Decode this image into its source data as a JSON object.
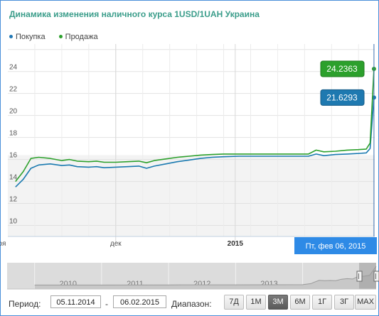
{
  "title": "Динамика изменения наличного курса 1USD/1UAH Украина",
  "legend": [
    {
      "label": "Покупка",
      "color": "#1f77b4"
    },
    {
      "label": "Продажа",
      "color": "#2ca02c"
    }
  ],
  "chart_data": {
    "type": "line",
    "ylim": [
      9,
      26.5
    ],
    "yticks": [
      10,
      12,
      14,
      16,
      18,
      20,
      22,
      24
    ],
    "x_range": [
      "2014-11-05",
      "2015-02-06"
    ],
    "xtick_labels": [
      {
        "date": "2014-11-01",
        "label": "ноя"
      },
      {
        "date": "2014-12-01",
        "label": "дек"
      },
      {
        "date": "2015-01-01",
        "label": "2015"
      }
    ],
    "grid": true,
    "legend_position": "top-left",
    "series": [
      {
        "name": "Покупка",
        "color": "#1a7ab0",
        "points": [
          [
            "2014-11-05",
            13.5
          ],
          [
            "2014-11-07",
            14.2
          ],
          [
            "2014-11-09",
            15.2
          ],
          [
            "2014-11-11",
            15.5
          ],
          [
            "2014-11-14",
            15.6
          ],
          [
            "2014-11-17",
            15.45
          ],
          [
            "2014-11-19",
            15.5
          ],
          [
            "2014-11-21",
            15.35
          ],
          [
            "2014-11-24",
            15.3
          ],
          [
            "2014-11-26",
            15.35
          ],
          [
            "2014-11-28",
            15.25
          ],
          [
            "2014-12-01",
            15.3
          ],
          [
            "2014-12-04",
            15.35
          ],
          [
            "2014-12-07",
            15.4
          ],
          [
            "2014-12-09",
            15.2
          ],
          [
            "2014-12-11",
            15.4
          ],
          [
            "2014-12-14",
            15.6
          ],
          [
            "2014-12-17",
            15.8
          ],
          [
            "2014-12-20",
            15.95
          ],
          [
            "2014-12-23",
            16.1
          ],
          [
            "2014-12-26",
            16.2
          ],
          [
            "2014-12-29",
            16.25
          ],
          [
            "2015-01-02",
            16.3
          ],
          [
            "2015-01-08",
            16.3
          ],
          [
            "2015-01-14",
            16.3
          ],
          [
            "2015-01-20",
            16.3
          ],
          [
            "2015-01-22",
            16.5
          ],
          [
            "2015-01-24",
            16.35
          ],
          [
            "2015-01-27",
            16.45
          ],
          [
            "2015-01-30",
            16.5
          ],
          [
            "2015-02-02",
            16.55
          ],
          [
            "2015-02-04",
            16.6
          ],
          [
            "2015-02-05",
            17.0
          ],
          [
            "2015-02-06",
            21.6293
          ]
        ]
      },
      {
        "name": "Продажа",
        "color": "#2ca02c",
        "points": [
          [
            "2014-11-05",
            14.0
          ],
          [
            "2014-11-07",
            14.9
          ],
          [
            "2014-11-09",
            16.1
          ],
          [
            "2014-11-11",
            16.2
          ],
          [
            "2014-11-14",
            16.1
          ],
          [
            "2014-11-17",
            15.9
          ],
          [
            "2014-11-19",
            16.0
          ],
          [
            "2014-11-21",
            15.85
          ],
          [
            "2014-11-24",
            15.8
          ],
          [
            "2014-11-26",
            15.85
          ],
          [
            "2014-11-28",
            15.75
          ],
          [
            "2014-12-01",
            15.75
          ],
          [
            "2014-12-04",
            15.8
          ],
          [
            "2014-12-07",
            15.85
          ],
          [
            "2014-12-09",
            15.7
          ],
          [
            "2014-12-11",
            15.9
          ],
          [
            "2014-12-14",
            16.05
          ],
          [
            "2014-12-17",
            16.2
          ],
          [
            "2014-12-20",
            16.3
          ],
          [
            "2014-12-23",
            16.4
          ],
          [
            "2014-12-26",
            16.45
          ],
          [
            "2014-12-29",
            16.5
          ],
          [
            "2015-01-02",
            16.5
          ],
          [
            "2015-01-08",
            16.5
          ],
          [
            "2015-01-14",
            16.5
          ],
          [
            "2015-01-20",
            16.5
          ],
          [
            "2015-01-22",
            16.85
          ],
          [
            "2015-01-24",
            16.7
          ],
          [
            "2015-01-27",
            16.75
          ],
          [
            "2015-01-30",
            16.85
          ],
          [
            "2015-02-02",
            16.9
          ],
          [
            "2015-02-04",
            16.95
          ],
          [
            "2015-02-05",
            17.5
          ],
          [
            "2015-02-06",
            24.2363
          ]
        ]
      }
    ],
    "end_labels": {
      "sale": "24.2363",
      "buy": "21.6293"
    },
    "tooltip": "Пт, фев 06, 2015",
    "navigator": {
      "years": [
        "2010",
        "2011",
        "2012",
        "2013",
        "2014"
      ],
      "history": [
        [
          "2010-01-01",
          8.0
        ],
        [
          "2011-01-01",
          8.0
        ],
        [
          "2012-01-01",
          8.1
        ],
        [
          "2013-01-01",
          8.15
        ],
        [
          "2014-01-01",
          8.3
        ],
        [
          "2014-02-15",
          9.2
        ],
        [
          "2014-03-01",
          10.2
        ],
        [
          "2014-04-01",
          12.0
        ],
        [
          "2014-05-01",
          11.8
        ],
        [
          "2014-06-01",
          11.9
        ],
        [
          "2014-07-01",
          11.8
        ],
        [
          "2014-08-01",
          13.0
        ],
        [
          "2014-09-01",
          13.5
        ],
        [
          "2014-10-01",
          13.2
        ],
        [
          "2014-11-01",
          15.5
        ],
        [
          "2014-12-01",
          15.6
        ],
        [
          "2015-01-01",
          16.3
        ],
        [
          "2015-02-06",
          24.2
        ]
      ],
      "selection_start": "2014-11-05",
      "selection_end": "2015-02-06"
    }
  },
  "period": {
    "label": "Период:",
    "from": "05.11.2014",
    "separator": "-",
    "to": "06.02.2015",
    "range_label": "Диапазон:",
    "buttons": [
      "7Д",
      "1М",
      "3М",
      "6М",
      "1Г",
      "3Г",
      "MAX"
    ],
    "active": "3М"
  }
}
